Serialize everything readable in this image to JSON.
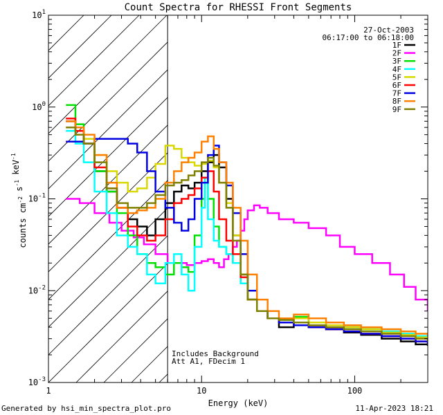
{
  "chart_data": {
    "type": "line",
    "title": "Count Spectra for RHESSI Front Segments",
    "xlabel": "Energy (keV)",
    "ylabel": "counts cm^-2 s^-1 keV^-1",
    "xscale": "log",
    "yscale": "log",
    "xlim": [
      1,
      300
    ],
    "ylim": [
      0.001,
      10
    ],
    "x_ticks": [
      {
        "value": 1,
        "label": "1"
      },
      {
        "value": 10,
        "label": "10"
      },
      {
        "value": 100,
        "label": "100"
      }
    ],
    "y_ticks": [
      {
        "value": 0.001,
        "base": "10",
        "exp": "-3"
      },
      {
        "value": 0.01,
        "base": "10",
        "exp": "-2"
      },
      {
        "value": 0.1,
        "base": "10",
        "exp": "-1"
      },
      {
        "value": 1,
        "base": "10",
        "exp": "0"
      },
      {
        "value": 10,
        "base": "10",
        "exp": "1"
      }
    ],
    "hatched_region": {
      "x_from": 1,
      "x_to": 6
    },
    "date": "27-Oct-2003",
    "time_range": "06:17:00 to 06:18:00",
    "annotations": [
      "Includes Background",
      "Att A1, FDecim 1"
    ],
    "series": [
      {
        "name": "1F",
        "color": "#000000",
        "x": [
          1.3,
          1.5,
          1.7,
          2.0,
          2.4,
          2.8,
          3.3,
          3.8,
          4.4,
          5.0,
          5.8,
          6.6,
          7.4,
          8.2,
          9.0,
          10.0,
          11.0,
          12.0,
          13.0,
          14.5,
          16.0,
          18.0,
          20.0,
          23.0,
          27.0,
          32.0,
          40.0,
          50.0,
          65.0,
          85.0,
          110.0,
          150.0,
          200.0,
          250.0,
          300.0
        ],
        "y": [
          0.7,
          0.55,
          0.4,
          0.2,
          0.12,
          0.08,
          0.06,
          0.05,
          0.04,
          0.06,
          0.09,
          0.12,
          0.14,
          0.13,
          0.15,
          0.2,
          0.25,
          0.3,
          0.22,
          0.1,
          0.04,
          0.015,
          0.008,
          0.006,
          0.005,
          0.004,
          0.0045,
          0.004,
          0.0038,
          0.0035,
          0.0033,
          0.003,
          0.0028,
          0.0026,
          0.0025
        ]
      },
      {
        "name": "2F",
        "color": "#ff00ff",
        "x": [
          1.3,
          1.6,
          2.0,
          2.5,
          3.0,
          3.6,
          4.2,
          5.0,
          6.0,
          7.0,
          8.0,
          9.0,
          10.0,
          11.0,
          12.0,
          13.0,
          14.0,
          15.0,
          16.0,
          17.0,
          18.0,
          19.0,
          20.0,
          22.0,
          24.0,
          27.0,
          32.0,
          40.0,
          50.0,
          65.0,
          80.0,
          100.0,
          130.0,
          170.0,
          210.0,
          250.0,
          300.0
        ],
        "y": [
          0.1,
          0.09,
          0.07,
          0.055,
          0.045,
          0.038,
          0.032,
          0.025,
          0.02,
          0.02,
          0.019,
          0.02,
          0.021,
          0.022,
          0.02,
          0.018,
          0.022,
          0.025,
          0.03,
          0.035,
          0.045,
          0.06,
          0.075,
          0.085,
          0.08,
          0.07,
          0.06,
          0.055,
          0.048,
          0.04,
          0.03,
          0.025,
          0.02,
          0.015,
          0.011,
          0.008,
          0.006
        ]
      },
      {
        "name": "3F",
        "color": "#00e000",
        "x": [
          1.3,
          1.5,
          1.7,
          2.0,
          2.4,
          2.8,
          3.3,
          3.8,
          4.4,
          5.0,
          5.8,
          6.6,
          7.4,
          8.2,
          9.0,
          10.0,
          10.5,
          11.0,
          12.0,
          13.0,
          14.5,
          16.0,
          18.0,
          20.0,
          23.0,
          27.0,
          32.0,
          40.0,
          50.0,
          65.0,
          85.0,
          110.0,
          150.0,
          200.0,
          250.0,
          300.0
        ],
        "y": [
          1.05,
          0.65,
          0.45,
          0.2,
          0.12,
          0.07,
          0.04,
          0.025,
          0.02,
          0.018,
          0.015,
          0.02,
          0.018,
          0.016,
          0.04,
          0.1,
          0.15,
          0.1,
          0.05,
          0.03,
          0.025,
          0.02,
          0.012,
          0.008,
          0.006,
          0.005,
          0.0048,
          0.0052,
          0.0045,
          0.0042,
          0.004,
          0.0038,
          0.0036,
          0.0034,
          0.0032,
          0.003
        ]
      },
      {
        "name": "4F",
        "color": "#00ffff",
        "x": [
          1.3,
          1.5,
          1.7,
          2.0,
          2.4,
          2.8,
          3.3,
          3.8,
          4.4,
          5.0,
          5.8,
          6.6,
          7.4,
          8.2,
          9.0,
          10.0,
          10.5,
          11.0,
          12.0,
          13.0,
          14.5,
          16.0,
          18.0,
          20.0,
          23.0,
          27.0,
          32.0,
          40.0,
          50.0,
          65.0,
          85.0,
          110.0,
          150.0,
          200.0,
          250.0,
          300.0
        ],
        "y": [
          0.55,
          0.4,
          0.25,
          0.12,
          0.07,
          0.04,
          0.03,
          0.025,
          0.015,
          0.012,
          0.02,
          0.025,
          0.015,
          0.01,
          0.03,
          0.08,
          0.17,
          0.06,
          0.035,
          0.03,
          0.025,
          0.02,
          0.012,
          0.008,
          0.006,
          0.005,
          0.0048,
          0.005,
          0.0045,
          0.0042,
          0.004,
          0.0038,
          0.0036,
          0.0034,
          0.0032,
          0.003
        ]
      },
      {
        "name": "5F",
        "color": "#d8d800",
        "x": [
          1.3,
          1.5,
          1.7,
          2.0,
          2.4,
          2.8,
          3.3,
          3.8,
          4.4,
          5.0,
          5.8,
          6.6,
          7.4,
          8.2,
          9.0,
          10.0,
          11.0,
          12.0,
          13.0,
          14.5,
          16.0,
          18.0,
          20.0,
          23.0,
          27.0,
          32.0,
          40.0,
          50.0,
          65.0,
          85.0,
          110.0,
          150.0,
          200.0,
          250.0,
          300.0
        ],
        "y": [
          0.6,
          0.55,
          0.45,
          0.3,
          0.2,
          0.15,
          0.12,
          0.13,
          0.17,
          0.24,
          0.38,
          0.35,
          0.28,
          0.25,
          0.23,
          0.24,
          0.26,
          0.22,
          0.15,
          0.09,
          0.04,
          0.015,
          0.008,
          0.006,
          0.005,
          0.0045,
          0.005,
          0.0045,
          0.0042,
          0.004,
          0.0038,
          0.0035,
          0.0033,
          0.0031,
          0.003
        ]
      },
      {
        "name": "6F",
        "color": "#ff0000",
        "x": [
          1.3,
          1.5,
          1.7,
          2.0,
          2.4,
          2.8,
          3.3,
          3.8,
          4.4,
          5.0,
          5.8,
          6.6,
          7.4,
          8.2,
          9.0,
          10.0,
          11.0,
          12.0,
          13.0,
          14.5,
          16.0,
          18.0,
          20.0,
          23.0,
          27.0,
          32.0,
          40.0,
          50.0,
          65.0,
          85.0,
          110.0,
          150.0,
          200.0,
          250.0,
          300.0
        ],
        "y": [
          0.75,
          0.55,
          0.4,
          0.22,
          0.13,
          0.08,
          0.05,
          0.04,
          0.035,
          0.04,
          0.06,
          0.09,
          0.1,
          0.11,
          0.13,
          0.17,
          0.2,
          0.12,
          0.06,
          0.035,
          0.025,
          0.014,
          0.008,
          0.006,
          0.005,
          0.0045,
          0.0042,
          0.004,
          0.0038,
          0.0036,
          0.0034,
          0.0032,
          0.003,
          0.0028,
          0.0026
        ]
      },
      {
        "name": "7F",
        "color": "#0000e0",
        "x": [
          1.3,
          1.5,
          1.7,
          2.0,
          2.4,
          2.8,
          3.3,
          3.8,
          4.4,
          5.0,
          5.8,
          6.6,
          7.4,
          8.2,
          9.0,
          10.0,
          11.0,
          12.0,
          13.0,
          14.5,
          16.0,
          18.0,
          20.0,
          23.0,
          27.0,
          32.0,
          40.0,
          50.0,
          65.0,
          85.0,
          110.0,
          150.0,
          200.0,
          250.0,
          300.0
        ],
        "y": [
          0.42,
          0.42,
          0.4,
          0.45,
          0.45,
          0.45,
          0.4,
          0.32,
          0.2,
          0.12,
          0.08,
          0.055,
          0.045,
          0.06,
          0.1,
          0.15,
          0.3,
          0.38,
          0.25,
          0.14,
          0.07,
          0.025,
          0.01,
          0.006,
          0.005,
          0.0045,
          0.0042,
          0.004,
          0.0038,
          0.0036,
          0.0034,
          0.0032,
          0.003,
          0.0028,
          0.0026
        ]
      },
      {
        "name": "8F",
        "color": "#ff8000",
        "x": [
          1.3,
          1.5,
          1.7,
          2.0,
          2.4,
          2.8,
          3.3,
          3.8,
          4.4,
          5.0,
          5.8,
          6.6,
          7.4,
          8.2,
          9.0,
          10.0,
          11.0,
          12.0,
          13.0,
          14.5,
          16.0,
          18.0,
          20.0,
          23.0,
          27.0,
          32.0,
          40.0,
          50.0,
          65.0,
          85.0,
          110.0,
          150.0,
          200.0,
          250.0,
          300.0
        ],
        "y": [
          0.7,
          0.6,
          0.5,
          0.3,
          0.15,
          0.08,
          0.07,
          0.075,
          0.08,
          0.1,
          0.15,
          0.2,
          0.25,
          0.28,
          0.32,
          0.42,
          0.48,
          0.35,
          0.25,
          0.15,
          0.08,
          0.035,
          0.015,
          0.008,
          0.006,
          0.005,
          0.0055,
          0.005,
          0.0045,
          0.0042,
          0.004,
          0.0038,
          0.0036,
          0.0034,
          0.0032
        ]
      },
      {
        "name": "9F",
        "color": "#808000",
        "x": [
          1.3,
          1.5,
          1.7,
          2.0,
          2.4,
          2.8,
          3.3,
          3.8,
          4.4,
          5.0,
          5.8,
          6.6,
          7.4,
          8.2,
          9.0,
          10.0,
          11.0,
          12.0,
          13.0,
          14.5,
          16.0,
          18.0,
          20.0,
          23.0,
          27.0,
          32.0,
          40.0,
          50.0,
          65.0,
          85.0,
          110.0,
          150.0,
          200.0,
          250.0,
          300.0
        ],
        "y": [
          0.6,
          0.5,
          0.4,
          0.25,
          0.13,
          0.09,
          0.08,
          0.08,
          0.09,
          0.11,
          0.14,
          0.15,
          0.16,
          0.18,
          0.2,
          0.25,
          0.28,
          0.23,
          0.15,
          0.08,
          0.035,
          0.015,
          0.008,
          0.006,
          0.005,
          0.0048,
          0.0045,
          0.0042,
          0.004,
          0.0038,
          0.0036,
          0.0034,
          0.0032,
          0.003,
          0.0028
        ]
      }
    ]
  },
  "footer": {
    "generator": "Generated by hsi_min_spectra_plot.pro",
    "timestamp": "11-Apr-2023 18:21"
  }
}
